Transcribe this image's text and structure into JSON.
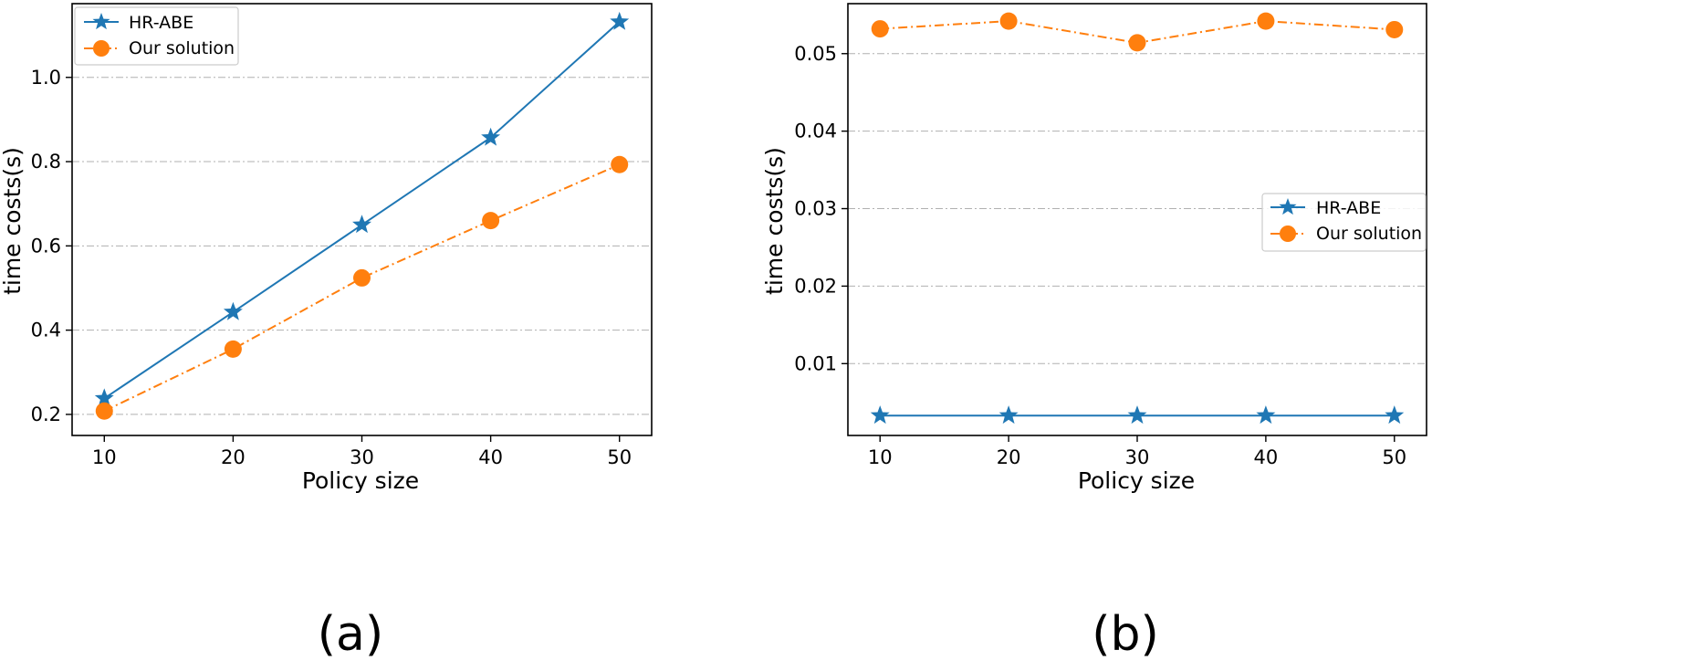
{
  "colors": {
    "hr_abe": "#1f77b4",
    "ours": "#ff7f0e",
    "grid": "#b0b0b0"
  },
  "chart_data": [
    {
      "id": "a",
      "type": "line",
      "panel_label": "(a)",
      "xlabel": "Policy size",
      "ylabel": "time costs(s)",
      "x": [
        10,
        20,
        30,
        40,
        50
      ],
      "xticks": [
        "10",
        "20",
        "30",
        "40",
        "50"
      ],
      "xlim": [
        7.5,
        52.5
      ],
      "ylim": [
        0.15,
        1.175
      ],
      "yticks": [
        0.2,
        0.4,
        0.6,
        0.8,
        1.0
      ],
      "ytick_labels": [
        "0.2",
        "0.4",
        "0.6",
        "0.8",
        "1.0"
      ],
      "grid": "y-dashdot",
      "legend_position": "upper-left",
      "series": [
        {
          "name": "HR-ABE",
          "values": [
            0.238,
            0.443,
            0.65,
            0.857,
            1.132
          ],
          "marker": "star",
          "line": "solid"
        },
        {
          "name": "Our solution",
          "values": [
            0.208,
            0.355,
            0.524,
            0.66,
            0.793
          ],
          "marker": "circle",
          "line": "dashdot"
        }
      ]
    },
    {
      "id": "b",
      "type": "line",
      "panel_label": "(b)",
      "xlabel": "Policy size",
      "ylabel": "time costs(s)",
      "x": [
        10,
        20,
        30,
        40,
        50
      ],
      "xticks": [
        "10",
        "20",
        "30",
        "40",
        "50"
      ],
      "xlim": [
        7.5,
        52.5
      ],
      "ylim": [
        0.00073,
        0.05645
      ],
      "yticks": [
        0.01,
        0.02,
        0.03,
        0.04,
        0.05
      ],
      "ytick_labels": [
        "0.01",
        "0.02",
        "0.03",
        "0.04",
        "0.05"
      ],
      "grid": "y-dashdot",
      "legend_position": "center-right",
      "series": [
        {
          "name": "HR-ABE",
          "values": [
            0.0033,
            0.0033,
            0.0033,
            0.0033,
            0.0033
          ],
          "marker": "star",
          "line": "solid"
        },
        {
          "name": "Our solution",
          "values": [
            0.0532,
            0.0542,
            0.0514,
            0.0542,
            0.0531
          ],
          "marker": "circle",
          "line": "dashdot"
        }
      ]
    }
  ]
}
